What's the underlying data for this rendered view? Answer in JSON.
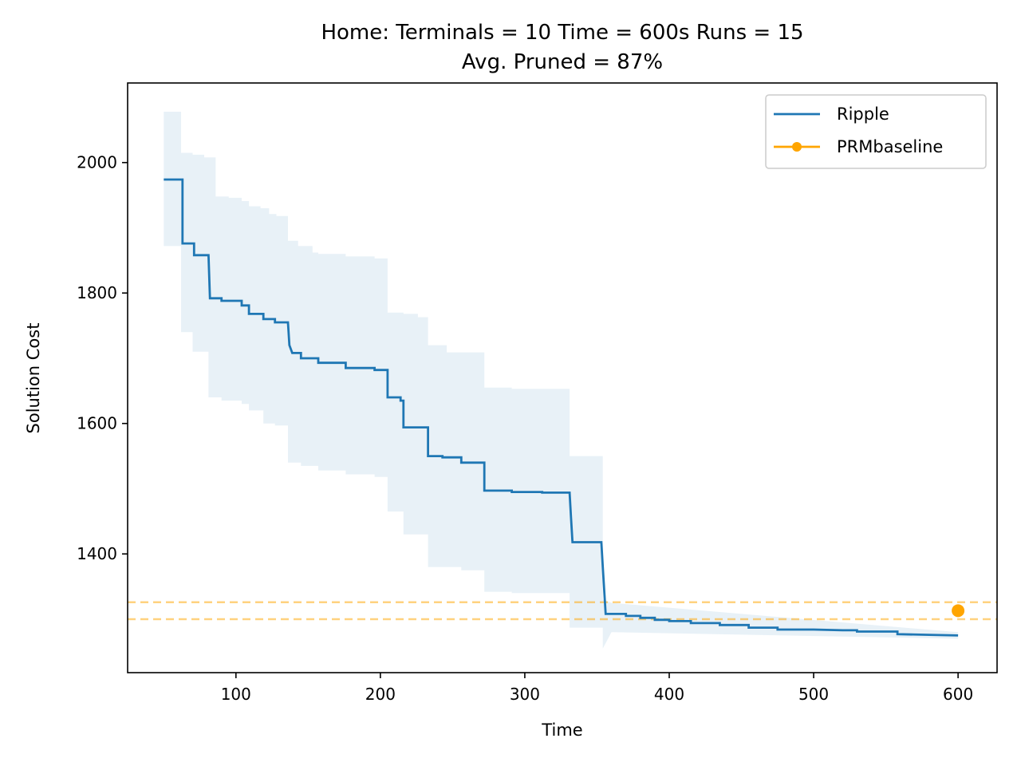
{
  "chart_data": {
    "type": "line",
    "title": "Home:  Terminals = 10  Time = 600s  Runs = 15",
    "subtitle": "Avg. Pruned = 87%",
    "xlabel": "Time",
    "ylabel": "Solution Cost",
    "xlim": [
      25,
      627
    ],
    "ylim": [
      1218,
      2122
    ],
    "x_ticks": [
      100,
      200,
      300,
      400,
      500,
      600
    ],
    "y_ticks": [
      1400,
      1600,
      1800,
      2000
    ],
    "grid": false,
    "legend_position": "top-right",
    "colors": {
      "ripple": "#1f77b4",
      "band": "#1f77b4",
      "baseline": "#ffa500"
    },
    "series": [
      {
        "name": "Ripple",
        "style": "step-line",
        "points": [
          [
            50,
            1974
          ],
          [
            63,
            1974
          ],
          [
            63,
            1876
          ],
          [
            71,
            1876
          ],
          [
            71,
            1858
          ],
          [
            81,
            1858
          ],
          [
            82,
            1792
          ],
          [
            90,
            1792
          ],
          [
            90,
            1788
          ],
          [
            104,
            1788
          ],
          [
            104,
            1781
          ],
          [
            109,
            1781
          ],
          [
            109,
            1768
          ],
          [
            119,
            1768
          ],
          [
            119,
            1760
          ],
          [
            127,
            1760
          ],
          [
            127,
            1755
          ],
          [
            136,
            1755
          ],
          [
            137,
            1720
          ],
          [
            139,
            1708
          ],
          [
            145,
            1708
          ],
          [
            145,
            1700
          ],
          [
            157,
            1700
          ],
          [
            157,
            1693
          ],
          [
            176,
            1693
          ],
          [
            176,
            1685
          ],
          [
            196,
            1685
          ],
          [
            196,
            1682
          ],
          [
            205,
            1682
          ],
          [
            205,
            1640
          ],
          [
            214,
            1640
          ],
          [
            214,
            1635
          ],
          [
            216,
            1635
          ],
          [
            216,
            1594
          ],
          [
            233,
            1594
          ],
          [
            233,
            1550
          ],
          [
            243,
            1550
          ],
          [
            243,
            1548
          ],
          [
            256,
            1548
          ],
          [
            256,
            1540
          ],
          [
            272,
            1540
          ],
          [
            272,
            1497
          ],
          [
            291,
            1497
          ],
          [
            291,
            1495
          ],
          [
            312,
            1495
          ],
          [
            312,
            1494
          ],
          [
            331,
            1494
          ],
          [
            332,
            1455
          ],
          [
            333,
            1418
          ],
          [
            353,
            1418
          ],
          [
            354,
            1380
          ],
          [
            356,
            1308
          ],
          [
            370,
            1308
          ],
          [
            370,
            1305
          ],
          [
            380,
            1305
          ],
          [
            380,
            1302
          ],
          [
            390,
            1302
          ],
          [
            390,
            1299
          ],
          [
            400,
            1299
          ],
          [
            400,
            1297
          ],
          [
            415,
            1297
          ],
          [
            415,
            1294
          ],
          [
            435,
            1294
          ],
          [
            435,
            1291
          ],
          [
            455,
            1291
          ],
          [
            455,
            1287
          ],
          [
            475,
            1287
          ],
          [
            475,
            1284
          ],
          [
            500,
            1284
          ],
          [
            520,
            1283
          ],
          [
            530,
            1283
          ],
          [
            530,
            1281
          ],
          [
            558,
            1281
          ],
          [
            558,
            1277
          ],
          [
            580,
            1276
          ],
          [
            600,
            1275
          ]
        ],
        "band": {
          "upper": [
            [
              50,
              2078
            ],
            [
              62,
              2078
            ],
            [
              62,
              2015
            ],
            [
              70,
              2015
            ],
            [
              70,
              2012
            ],
            [
              78,
              2012
            ],
            [
              78,
              2008
            ],
            [
              86,
              2008
            ],
            [
              86,
              1948
            ],
            [
              95,
              1948
            ],
            [
              95,
              1946
            ],
            [
              104,
              1946
            ],
            [
              104,
              1941
            ],
            [
              109,
              1941
            ],
            [
              109,
              1933
            ],
            [
              117,
              1933
            ],
            [
              117,
              1930
            ],
            [
              123,
              1930
            ],
            [
              123,
              1921
            ],
            [
              128,
              1921
            ],
            [
              128,
              1918
            ],
            [
              136,
              1918
            ],
            [
              136,
              1880
            ],
            [
              143,
              1880
            ],
            [
              143,
              1872
            ],
            [
              153,
              1872
            ],
            [
              153,
              1862
            ],
            [
              157,
              1862
            ],
            [
              157,
              1860
            ],
            [
              176,
              1860
            ],
            [
              176,
              1856
            ],
            [
              196,
              1856
            ],
            [
              196,
              1853
            ],
            [
              205,
              1853
            ],
            [
              205,
              1770
            ],
            [
              216,
              1770
            ],
            [
              216,
              1768
            ],
            [
              226,
              1768
            ],
            [
              226,
              1763
            ],
            [
              233,
              1763
            ],
            [
              233,
              1720
            ],
            [
              246,
              1720
            ],
            [
              246,
              1709
            ],
            [
              272,
              1709
            ],
            [
              272,
              1655
            ],
            [
              291,
              1655
            ],
            [
              291,
              1653
            ],
            [
              331,
              1653
            ],
            [
              331,
              1550
            ],
            [
              354,
              1550
            ],
            [
              354,
              1330
            ],
            [
              360,
              1325
            ],
            [
              600,
              1280
            ]
          ],
          "lower": [
            [
              50,
              1872
            ],
            [
              62,
              1872
            ],
            [
              62,
              1740
            ],
            [
              70,
              1740
            ],
            [
              70,
              1710
            ],
            [
              81,
              1710
            ],
            [
              81,
              1640
            ],
            [
              90,
              1640
            ],
            [
              90,
              1635
            ],
            [
              104,
              1635
            ],
            [
              104,
              1630
            ],
            [
              109,
              1630
            ],
            [
              109,
              1620
            ],
            [
              119,
              1620
            ],
            [
              119,
              1600
            ],
            [
              127,
              1600
            ],
            [
              127,
              1597
            ],
            [
              136,
              1597
            ],
            [
              136,
              1540
            ],
            [
              145,
              1540
            ],
            [
              145,
              1535
            ],
            [
              157,
              1535
            ],
            [
              157,
              1528
            ],
            [
              176,
              1528
            ],
            [
              176,
              1522
            ],
            [
              196,
              1522
            ],
            [
              196,
              1518
            ],
            [
              205,
              1518
            ],
            [
              205,
              1465
            ],
            [
              216,
              1465
            ],
            [
              216,
              1430
            ],
            [
              233,
              1430
            ],
            [
              233,
              1380
            ],
            [
              256,
              1380
            ],
            [
              256,
              1375
            ],
            [
              272,
              1375
            ],
            [
              272,
              1342
            ],
            [
              291,
              1342
            ],
            [
              291,
              1340
            ],
            [
              331,
              1340
            ],
            [
              331,
              1287
            ],
            [
              354,
              1287
            ],
            [
              354,
              1255
            ],
            [
              360,
              1280
            ],
            [
              600,
              1270
            ]
          ]
        }
      },
      {
        "name": "PRMbaseline",
        "style": "marker",
        "points": [
          [
            600,
            1313
          ]
        ],
        "hlines": [
          1326,
          1300
        ]
      }
    ]
  }
}
